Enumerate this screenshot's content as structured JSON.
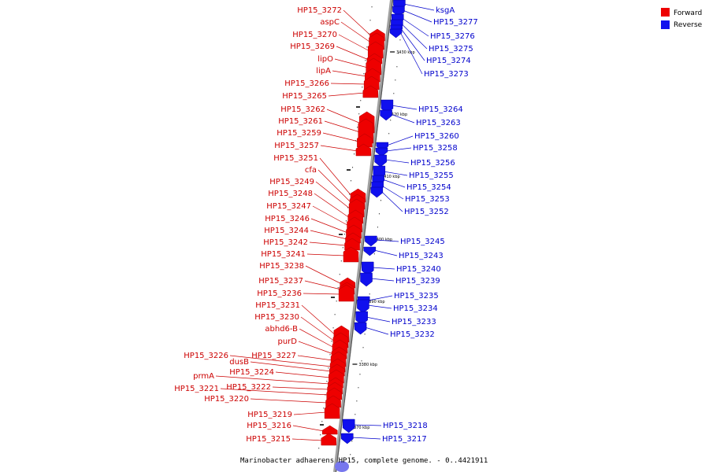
{
  "caption": "Marinobacter adhaerens HP15, complete genome. - 0..4421911",
  "legend": {
    "forward_label": "Forward",
    "reverse_label": "Reverse",
    "forward_color": "#ee0000",
    "reverse_color": "#1010ee"
  },
  "kbp_marks": [
    {
      "label": "3430 kbp"
    },
    {
      "label": "3420 kbp"
    },
    {
      "label": "3410 kbp"
    },
    {
      "label": "3400 kbp"
    },
    {
      "label": "3390 kbp"
    },
    {
      "label": "3380 kbp"
    },
    {
      "label": "3370 kbp"
    }
  ],
  "forward_genes": [
    {
      "name": "HP15_3272"
    },
    {
      "name": "aspC"
    },
    {
      "name": "HP15_3270"
    },
    {
      "name": "HP15_3269"
    },
    {
      "name": "lipO"
    },
    {
      "name": "lipA"
    },
    {
      "name": "HP15_3266"
    },
    {
      "name": "HP15_3265"
    },
    {
      "name": "HP15_3262"
    },
    {
      "name": "HP15_3261"
    },
    {
      "name": "HP15_3259"
    },
    {
      "name": "HP15_3257"
    },
    {
      "name": "HP15_3251"
    },
    {
      "name": "cfa"
    },
    {
      "name": "HP15_3249"
    },
    {
      "name": "HP15_3248"
    },
    {
      "name": "HP15_3247"
    },
    {
      "name": "HP15_3246"
    },
    {
      "name": "HP15_3244"
    },
    {
      "name": "HP15_3242"
    },
    {
      "name": "HP15_3241"
    },
    {
      "name": "HP15_3238"
    },
    {
      "name": "HP15_3237"
    },
    {
      "name": "HP15_3236"
    },
    {
      "name": "HP15_3231"
    },
    {
      "name": "HP15_3230"
    },
    {
      "name": "abhd6-B"
    },
    {
      "name": "purD"
    },
    {
      "name": "HP15_3227"
    },
    {
      "name": "HP15_3226"
    },
    {
      "name": "dusB"
    },
    {
      "name": "HP15_3224"
    },
    {
      "name": "prmA"
    },
    {
      "name": "HP15_3222"
    },
    {
      "name": "HP15_3221"
    },
    {
      "name": "HP15_3220"
    },
    {
      "name": "HP15_3219"
    },
    {
      "name": "HP15_3216"
    },
    {
      "name": "HP15_3215"
    }
  ],
  "reverse_genes": [
    {
      "name": "ksgA"
    },
    {
      "name": "HP15_3277"
    },
    {
      "name": "HP15_3276"
    },
    {
      "name": "HP15_3275"
    },
    {
      "name": "HP15_3274"
    },
    {
      "name": "HP15_3273"
    },
    {
      "name": "HP15_3264"
    },
    {
      "name": "HP15_3263"
    },
    {
      "name": "HP15_3260"
    },
    {
      "name": "HP15_3258"
    },
    {
      "name": "HP15_3256"
    },
    {
      "name": "HP15_3255"
    },
    {
      "name": "HP15_3254"
    },
    {
      "name": "HP15_3253"
    },
    {
      "name": "HP15_3252"
    },
    {
      "name": "HP15_3245"
    },
    {
      "name": "HP15_3243"
    },
    {
      "name": "HP15_3240"
    },
    {
      "name": "HP15_3239"
    },
    {
      "name": "HP15_3235"
    },
    {
      "name": "HP15_3234"
    },
    {
      "name": "HP15_3233"
    },
    {
      "name": "HP15_3232"
    },
    {
      "name": "HP15_3218"
    },
    {
      "name": "HP15_3217"
    }
  ]
}
